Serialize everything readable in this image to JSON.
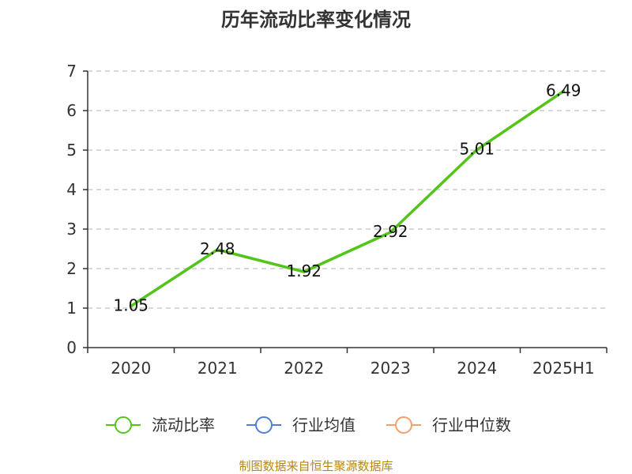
{
  "chart_data": {
    "type": "line",
    "title": "历年流动比率变化情况",
    "categories": [
      "2020",
      "2021",
      "2022",
      "2023",
      "2024",
      "2025H1"
    ],
    "series": [
      {
        "name": "流动比率",
        "values": [
          1.05,
          2.48,
          1.92,
          2.92,
          5.01,
          6.49
        ],
        "color": "#52c41a"
      }
    ],
    "data_labels": [
      "1.05",
      "2.48",
      "1.92",
      "2.92",
      "5.01",
      "6.49"
    ],
    "ylim": [
      0,
      7
    ],
    "y_ticks": [
      "0",
      "1",
      "2",
      "3",
      "4",
      "5",
      "6",
      "7"
    ],
    "grid": "horizontal-dashed",
    "legend_position": "bottom"
  },
  "legend": [
    {
      "label": "流动比率",
      "color": "#52c41a"
    },
    {
      "label": "行业均值",
      "color": "#4e7fd8"
    },
    {
      "label": "行业中位数",
      "color": "#f4a06a"
    }
  ],
  "source_note": "制图数据来自恒生聚源数据库"
}
